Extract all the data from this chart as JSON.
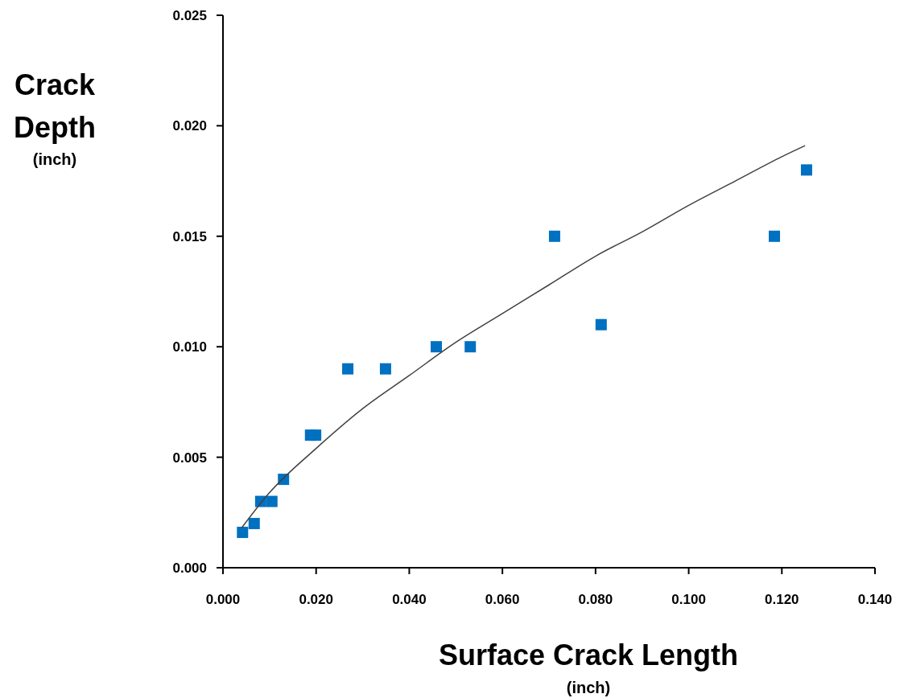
{
  "chart_data": {
    "type": "scatter",
    "xlabel": "Surface Crack Length\n(inch)",
    "ylabel": "Crack\nDepth\n(inch)",
    "xlim": [
      0,
      0.14
    ],
    "ylim": [
      0,
      0.025
    ],
    "marker": "square",
    "grid": false,
    "xticks": [
      {
        "value": 0,
        "label": "0.000"
      },
      {
        "value": 0.02,
        "label": "0.020"
      },
      {
        "value": 0.04,
        "label": "0.040"
      },
      {
        "value": 0.06,
        "label": "0.060"
      },
      {
        "value": 0.08,
        "label": "0.080"
      },
      {
        "value": 0.1,
        "label": "0.100"
      },
      {
        "value": 0.12,
        "label": "0.120"
      },
      {
        "value": 0.14,
        "label": "0.140"
      }
    ],
    "yticks": [
      {
        "value": 0,
        "label": "0.000"
      },
      {
        "value": 0.005,
        "label": "0.005"
      },
      {
        "value": 0.01,
        "label": "0.010"
      },
      {
        "value": 0.015,
        "label": "0.015"
      },
      {
        "value": 0.02,
        "label": "0.020"
      },
      {
        "value": 0.025,
        "label": "0.025"
      }
    ],
    "series": [
      {
        "color": "#0070c0",
        "x": [
          0.0042,
          0.0067,
          0.0081,
          0.0105,
          0.013,
          0.0188,
          0.0199,
          0.0268,
          0.0349,
          0.0458,
          0.0531,
          0.0712,
          0.0812,
          0.1184,
          0.1253
        ],
        "values": [
          0.0016,
          0.002,
          0.003,
          0.003,
          0.004,
          0.006,
          0.006,
          0.009,
          0.009,
          0.01,
          0.01,
          0.015,
          0.011,
          0.015,
          0.018
        ]
      },
      {
        "type": "line",
        "color": "#404040",
        "marker": "none",
        "x": [
          0.004,
          0.01,
          0.02,
          0.03,
          0.04,
          0.05,
          0.06,
          0.07,
          0.08,
          0.09,
          0.1,
          0.11,
          0.12,
          0.125
        ],
        "values": [
          0.0018,
          0.0034,
          0.0054,
          0.0072,
          0.0087,
          0.0102,
          0.0115,
          0.0128,
          0.0141,
          0.0152,
          0.0164,
          0.0175,
          0.0186,
          0.0191
        ]
      }
    ]
  }
}
